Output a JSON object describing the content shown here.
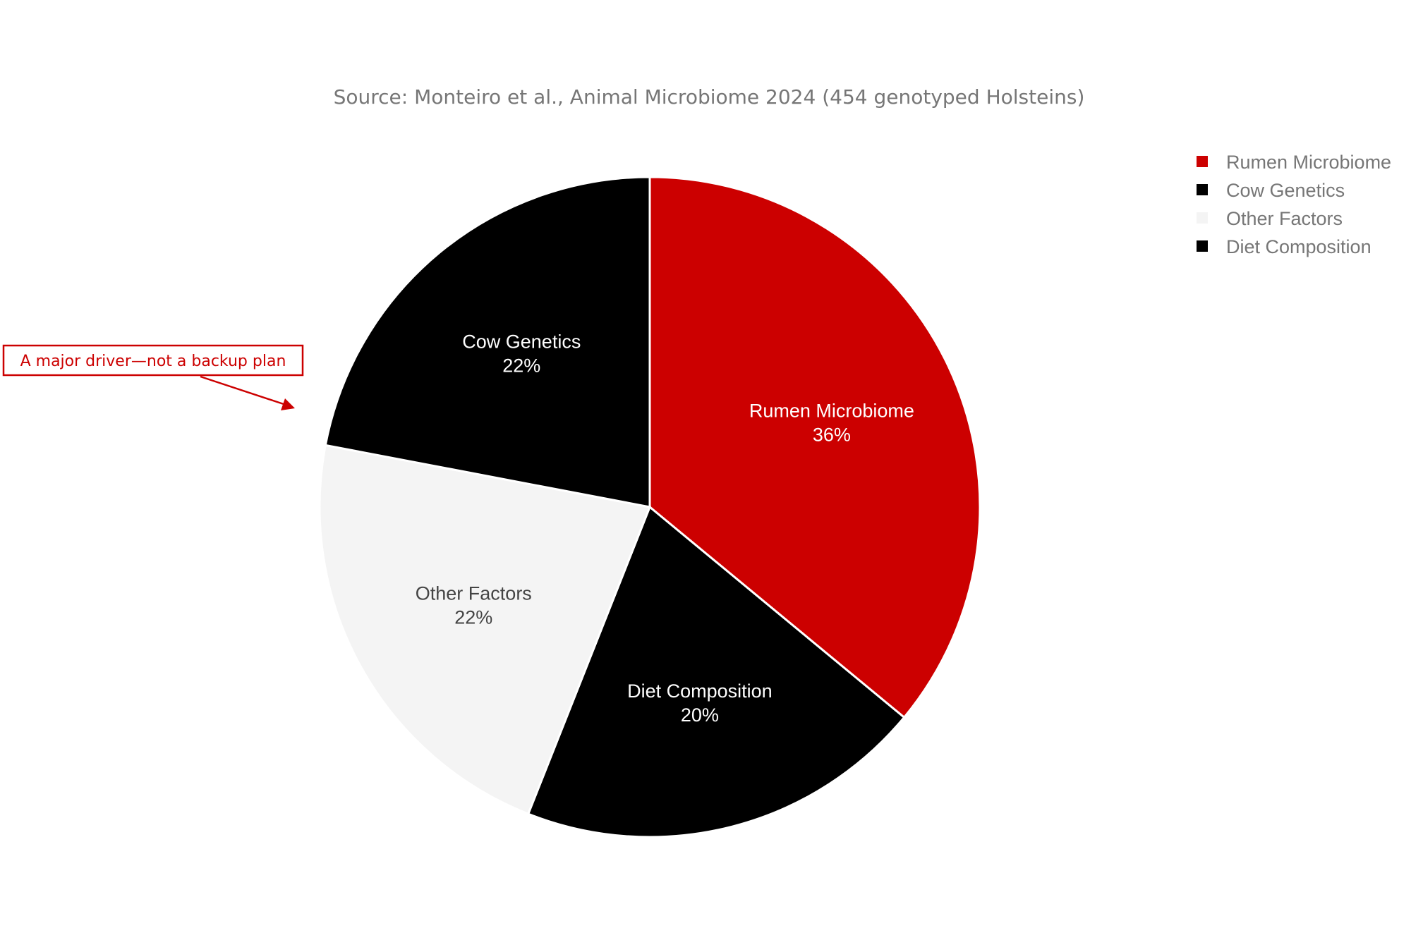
{
  "chart_data": {
    "type": "pie",
    "subtitle": "Source: Monteiro et al., Animal Microbiome 2024 (454 genotyped Holsteins)",
    "slices": [
      {
        "label": "Rumen Microbiome",
        "value": 36,
        "value_label": "36%",
        "color": "#cc0000",
        "text_color": "#ffffff"
      },
      {
        "label": "Diet Composition",
        "value": 20,
        "value_label": "20%",
        "color": "#000000",
        "text_color": "#ffffff"
      },
      {
        "label": "Other Factors",
        "value": 22,
        "value_label": "22%",
        "color": "#f4f4f4",
        "text_color": "#444444"
      },
      {
        "label": "Cow Genetics",
        "value": 22,
        "value_label": "22%",
        "color": "#000000",
        "text_color": "#ffffff"
      }
    ],
    "legend": {
      "placement": "top-right",
      "items": [
        {
          "label": "Rumen Microbiome",
          "color": "#cc0000"
        },
        {
          "label": "Cow Genetics",
          "color": "#000000"
        },
        {
          "label": "Other Factors",
          "color": "#f4f4f4"
        },
        {
          "label": "Diet Composition",
          "color": "#000000"
        }
      ]
    },
    "annotation": {
      "text": "A major driver—not a backup plan",
      "target": "Cow Genetics",
      "color": "#cc0000"
    }
  }
}
